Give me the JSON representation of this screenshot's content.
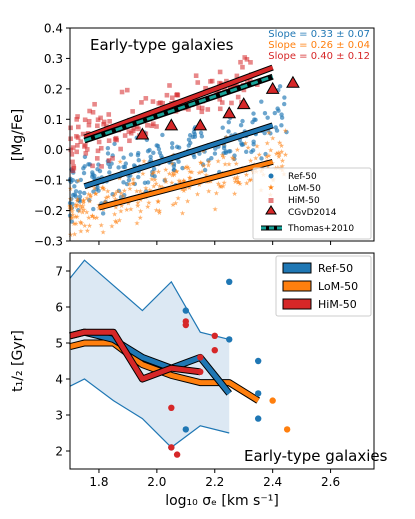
{
  "colors": {
    "ref50": "#1f77b4",
    "lom50": "#ff7f0e",
    "him50": "#d62728",
    "thomas_teal": "#17a398",
    "band_fill": "#dce8f3",
    "axes": "#000000"
  },
  "shared_xaxis": {
    "label": "log₁₀ σₑ [km s⁻¹]",
    "xlim": [
      1.7,
      2.75
    ],
    "ticks": [
      "1.8",
      "2.0",
      "2.2",
      "2.4",
      "2.6"
    ]
  },
  "chart_data": [
    {
      "type": "scatter",
      "panel": "top",
      "title": "Early-type galaxies",
      "ylabel": "[Mg/Fe]",
      "ylim": [
        -0.3,
        0.4
      ],
      "yticks": [
        "−0.3",
        "−0.2",
        "−0.1",
        "0.0",
        "0.1",
        "0.2",
        "0.3",
        "0.4"
      ],
      "slopes": [
        {
          "text": "Slope = 0.33 ± 0.07",
          "series": "Ref-50"
        },
        {
          "text": "Slope = 0.26 ± 0.04",
          "series": "LoM-50"
        },
        {
          "text": "Slope = 0.40 ± 0.12",
          "series": "HiM-50"
        }
      ],
      "legend": {
        "placement": "lower-right",
        "entries": [
          "Ref-50",
          "LoM-50",
          "HiM-50",
          "CGvD2014",
          "Thomas+2010"
        ]
      },
      "fit_lines": [
        {
          "series": "HiM-50",
          "x": [
            1.75,
            2.4
          ],
          "y": [
            0.04,
            0.27
          ]
        },
        {
          "series": "Thomas+2010",
          "x": [
            1.75,
            2.4
          ],
          "y": [
            0.03,
            0.24
          ]
        },
        {
          "series": "Ref-50",
          "x": [
            1.75,
            2.4
          ],
          "y": [
            -0.12,
            0.08
          ]
        },
        {
          "series": "LoM-50",
          "x": [
            1.8,
            2.4
          ],
          "y": [
            -0.19,
            -0.04
          ]
        }
      ],
      "cgvd2014": {
        "series": "CGvD2014",
        "x": [
          1.95,
          2.05,
          2.15,
          2.25,
          2.3,
          2.4,
          2.47
        ],
        "y": [
          0.05,
          0.08,
          0.08,
          0.12,
          0.15,
          0.2,
          0.22
        ]
      },
      "scatter_clouds": [
        {
          "series": "Ref-50",
          "n": 230,
          "x_range": [
            1.7,
            2.45
          ],
          "slope": 0.33,
          "intercept_at_2": -0.04,
          "spread": 0.09
        },
        {
          "series": "LoM-50",
          "n": 270,
          "x_range": [
            1.7,
            2.45
          ],
          "slope": 0.26,
          "intercept_at_2": -0.13,
          "spread": 0.09
        },
        {
          "series": "HiM-50",
          "n": 150,
          "x_range": [
            1.7,
            2.35
          ],
          "slope": 0.4,
          "intercept_at_2": 0.12,
          "spread": 0.09
        }
      ]
    },
    {
      "type": "line",
      "panel": "bottom",
      "title": "Early-type galaxies",
      "ylabel": "t₁/₂ [Gyr]",
      "ylim": [
        1.5,
        7.5
      ],
      "yticks": [
        "2",
        "3",
        "4",
        "5",
        "6",
        "7"
      ],
      "legend": {
        "placement": "top-right",
        "entries": [
          "Ref-50",
          "LoM-50",
          "HiM-50"
        ]
      },
      "band": {
        "series": "Ref-50",
        "x": [
          1.7,
          1.75,
          1.85,
          1.95,
          2.05,
          2.15,
          2.25
        ],
        "upper": [
          6.8,
          7.3,
          6.6,
          5.9,
          6.7,
          5.3,
          5.1
        ],
        "lower": [
          3.8,
          4.0,
          3.4,
          2.9,
          2.1,
          2.7,
          2.5
        ]
      },
      "series": [
        {
          "name": "Ref-50",
          "x": [
            1.7,
            1.75,
            1.85,
            1.95,
            2.05,
            2.15,
            2.25
          ],
          "y": [
            5.2,
            5.3,
            5.1,
            4.6,
            4.3,
            4.6,
            3.6
          ]
        },
        {
          "name": "LoM-50",
          "x": [
            1.7,
            1.75,
            1.85,
            1.95,
            2.05,
            2.15,
            2.25,
            2.35
          ],
          "y": [
            4.9,
            5.0,
            5.0,
            4.4,
            4.1,
            3.9,
            3.9,
            3.4
          ]
        },
        {
          "name": "HiM-50",
          "x": [
            1.7,
            1.75,
            1.85,
            1.95,
            2.05,
            2.15
          ],
          "y": [
            5.2,
            5.3,
            5.3,
            4.0,
            4.3,
            4.2
          ]
        }
      ],
      "outliers": [
        {
          "series": "Ref-50",
          "x": [
            2.05,
            2.1,
            2.1,
            2.25,
            2.25,
            2.35,
            2.35,
            2.35
          ],
          "y": [
            2.1,
            2.6,
            5.9,
            6.7,
            5.1,
            4.5,
            3.6,
            2.9
          ]
        },
        {
          "series": "LoM-50",
          "x": [
            2.4,
            2.45
          ],
          "y": [
            3.4,
            2.6
          ]
        },
        {
          "series": "HiM-50",
          "x": [
            2.05,
            2.1,
            2.1,
            2.15,
            2.15,
            2.2,
            2.2,
            2.05,
            2.07
          ],
          "y": [
            3.2,
            5.6,
            5.5,
            4.2,
            4.6,
            5.2,
            4.8,
            2.1,
            1.9
          ]
        }
      ]
    }
  ]
}
